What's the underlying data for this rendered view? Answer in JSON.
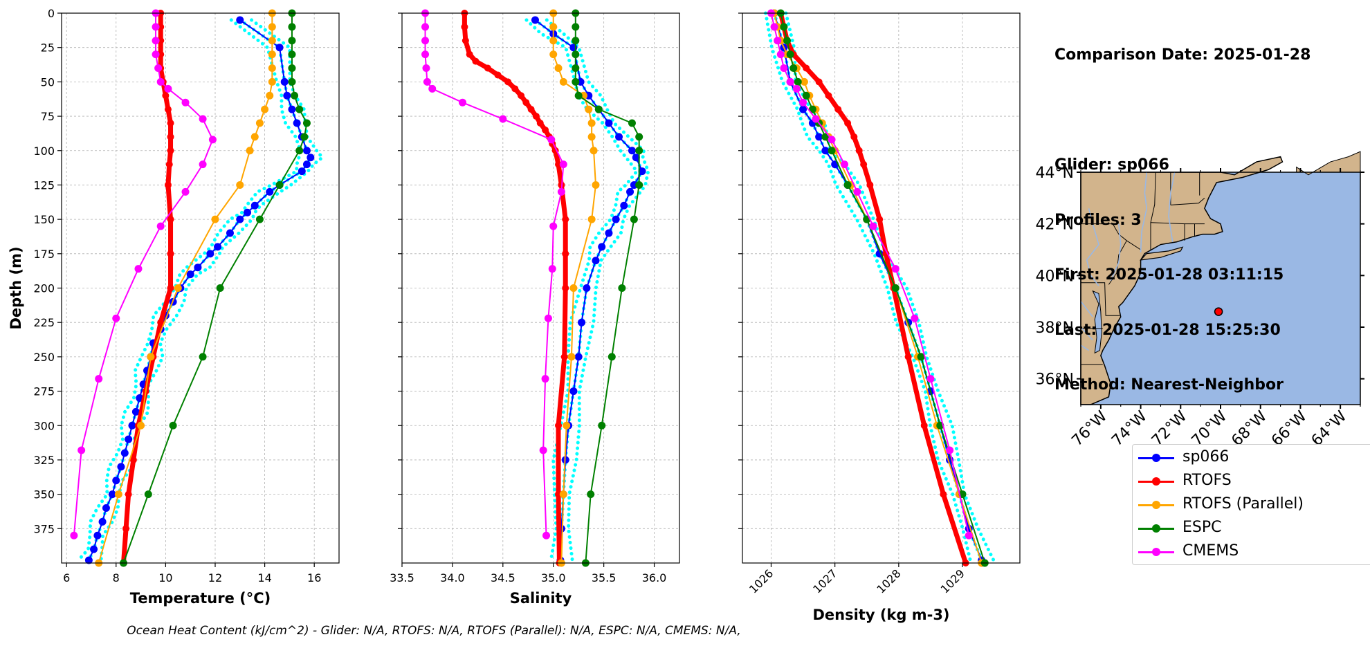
{
  "info": {
    "date_line": "Comparison Date: 2025-01-28",
    "glider_line": "Glider: sp066",
    "profiles_line": "Profiles: 3",
    "first_line": "First: 2025-01-28 03:11:15",
    "last_line": "Last: 2025-01-28 15:25:30",
    "method_line": "Method: Nearest-Neighbor"
  },
  "footer": "Ocean Heat Content (kJ/cm^2) - Glider: N/A,  RTOFS: N/A,  RTOFS (Parallel): N/A,  ESPC: N/A,  CMEMS: N/A,",
  "colors": {
    "sp066": "#0000ff",
    "RTOFS": "#ff0000",
    "RTOFS (Parallel)": "#ffa500",
    "ESPC": "#008000",
    "CMEMS": "#ff00ff",
    "glider_profiles": "#00ffff",
    "land": "#d2b48c",
    "ocean": "#9ab8e4"
  },
  "legend": [
    {
      "name": "sp066",
      "color": "#0000ff"
    },
    {
      "name": "RTOFS",
      "color": "#ff0000"
    },
    {
      "name": "RTOFS (Parallel)",
      "color": "#ffa500"
    },
    {
      "name": "ESPC",
      "color": "#008000"
    },
    {
      "name": "CMEMS",
      "color": "#ff00ff"
    }
  ],
  "map": {
    "xticks": [
      "76°W",
      "74°W",
      "72°W",
      "70°W",
      "68°W",
      "66°W",
      "64°W"
    ],
    "yticks": [
      "44°N",
      "42°N",
      "40°N",
      "38°N",
      "36°N"
    ],
    "glider_position": {
      "lon": -70.1,
      "lat": 38.6
    },
    "lon_range": [
      -77,
      -63
    ],
    "lat_range": [
      35,
      44
    ]
  },
  "chart_data": [
    {
      "type": "line",
      "xlabel": "Temperature (°C)",
      "ylabel": "Depth (m)",
      "xlim": [
        5.8,
        17.0
      ],
      "ylim": [
        400,
        0
      ],
      "xticks": [
        6,
        8,
        10,
        12,
        14,
        16
      ],
      "yticks": [
        0,
        25,
        50,
        75,
        100,
        125,
        150,
        175,
        200,
        225,
        250,
        275,
        300,
        325,
        350,
        375
      ],
      "grid": true,
      "series": [
        {
          "name": "sp066",
          "depth": [
            5,
            25,
            50,
            60,
            70,
            80,
            90,
            100,
            105,
            110,
            115,
            125,
            130,
            140,
            145,
            150,
            160,
            170,
            175,
            185,
            190,
            200,
            210,
            220,
            230,
            240,
            250,
            260,
            270,
            280,
            290,
            300,
            310,
            320,
            330,
            340,
            350,
            360,
            370,
            380,
            390,
            398
          ],
          "values": [
            13.0,
            14.6,
            14.8,
            14.9,
            15.1,
            15.3,
            15.5,
            15.7,
            15.85,
            15.7,
            15.5,
            14.6,
            14.2,
            13.6,
            13.3,
            13.0,
            12.6,
            12.1,
            11.8,
            11.3,
            11.0,
            10.6,
            10.3,
            10.0,
            9.8,
            9.5,
            9.4,
            9.25,
            9.1,
            8.95,
            8.8,
            8.65,
            8.5,
            8.35,
            8.2,
            8.0,
            7.85,
            7.6,
            7.45,
            7.25,
            7.1,
            6.9
          ]
        },
        {
          "name": "RTOFS",
          "depth": [
            0,
            10,
            20,
            30,
            40,
            50,
            60,
            70,
            80,
            90,
            100,
            110,
            125,
            150,
            175,
            200,
            225,
            250,
            275,
            300,
            325,
            350,
            375,
            400
          ],
          "values": [
            9.8,
            9.8,
            9.8,
            9.8,
            9.8,
            9.9,
            10.0,
            10.1,
            10.2,
            10.2,
            10.2,
            10.15,
            10.1,
            10.2,
            10.2,
            10.2,
            9.8,
            9.5,
            9.2,
            8.9,
            8.7,
            8.5,
            8.4,
            8.3
          ]
        },
        {
          "name": "RTOFS (Parallel)",
          "depth": [
            0,
            10,
            20,
            30,
            40,
            50,
            60,
            70,
            80,
            90,
            100,
            125,
            150,
            200,
            250,
            300,
            350,
            400
          ],
          "values": [
            14.3,
            14.3,
            14.3,
            14.3,
            14.3,
            14.3,
            14.2,
            14.0,
            13.8,
            13.6,
            13.4,
            13.0,
            12.0,
            10.5,
            9.4,
            9.0,
            8.1,
            7.3
          ]
        },
        {
          "name": "ESPC",
          "depth": [
            0,
            10,
            20,
            30,
            40,
            50,
            60,
            70,
            80,
            90,
            100,
            125,
            150,
            200,
            250,
            300,
            350,
            400
          ],
          "values": [
            15.1,
            15.1,
            15.1,
            15.1,
            15.1,
            15.1,
            15.2,
            15.4,
            15.7,
            15.6,
            15.4,
            14.6,
            13.8,
            12.2,
            11.5,
            10.3,
            9.3,
            8.3
          ]
        },
        {
          "name": "CMEMS",
          "depth": [
            0,
            10,
            20,
            30,
            40,
            50,
            55,
            65,
            77,
            92,
            110,
            130,
            155,
            186,
            222,
            266,
            318,
            380
          ],
          "values": [
            9.6,
            9.6,
            9.6,
            9.6,
            9.7,
            9.8,
            10.1,
            10.8,
            11.5,
            11.9,
            11.5,
            10.8,
            9.8,
            8.9,
            8.0,
            7.3,
            6.6,
            6.3
          ]
        }
      ]
    },
    {
      "type": "line",
      "xlabel": "Salinity",
      "xlim": [
        33.5,
        36.25
      ],
      "ylim": [
        400,
        0
      ],
      "xticks": [
        33.5,
        34.0,
        34.5,
        35.0,
        35.5,
        36.0
      ],
      "grid": true,
      "series": [
        {
          "name": "sp066",
          "depth": [
            5,
            15,
            25,
            50,
            60,
            70,
            80,
            90,
            100,
            105,
            115,
            125,
            130,
            140,
            150,
            160,
            170,
            180,
            200,
            225,
            250,
            275,
            300,
            325,
            350,
            375,
            398
          ],
          "values": [
            34.82,
            35.0,
            35.2,
            35.27,
            35.35,
            35.45,
            35.55,
            35.65,
            35.78,
            35.82,
            35.88,
            35.8,
            35.76,
            35.7,
            35.62,
            35.55,
            35.48,
            35.42,
            35.33,
            35.28,
            35.25,
            35.2,
            35.15,
            35.12,
            35.1,
            35.08,
            35.07
          ]
        },
        {
          "name": "RTOFS",
          "depth": [
            0,
            10,
            20,
            30,
            35,
            40,
            45,
            50,
            55,
            60,
            65,
            70,
            75,
            80,
            85,
            90,
            95,
            100,
            110,
            125,
            150,
            175,
            200,
            250,
            300,
            350,
            400
          ],
          "values": [
            34.12,
            34.12,
            34.13,
            34.17,
            34.23,
            34.35,
            34.45,
            34.55,
            34.62,
            34.68,
            34.73,
            34.78,
            34.83,
            34.87,
            34.92,
            34.96,
            34.99,
            35.02,
            35.05,
            35.08,
            35.12,
            35.12,
            35.12,
            35.11,
            35.05,
            35.05,
            35.06
          ]
        },
        {
          "name": "RTOFS (Parallel)",
          "depth": [
            0,
            10,
            20,
            30,
            40,
            50,
            60,
            70,
            80,
            90,
            100,
            125,
            150,
            200,
            250,
            300,
            350,
            400
          ],
          "values": [
            35.0,
            35.0,
            35.0,
            35.0,
            35.05,
            35.1,
            35.3,
            35.35,
            35.38,
            35.38,
            35.4,
            35.42,
            35.38,
            35.2,
            35.18,
            35.13,
            35.1,
            35.08
          ]
        },
        {
          "name": "ESPC",
          "depth": [
            0,
            10,
            20,
            30,
            40,
            50,
            60,
            70,
            80,
            90,
            100,
            125,
            150,
            200,
            250,
            300,
            350,
            400
          ],
          "values": [
            35.22,
            35.22,
            35.22,
            35.22,
            35.22,
            35.22,
            35.25,
            35.45,
            35.78,
            35.85,
            35.85,
            35.85,
            35.8,
            35.68,
            35.58,
            35.48,
            35.37,
            35.32
          ]
        },
        {
          "name": "CMEMS",
          "depth": [
            0,
            10,
            20,
            30,
            40,
            50,
            55,
            65,
            77,
            92,
            110,
            130,
            155,
            186,
            222,
            266,
            318,
            380
          ],
          "values": [
            33.73,
            33.73,
            33.73,
            33.73,
            33.74,
            33.75,
            33.8,
            34.1,
            34.5,
            34.98,
            35.1,
            35.08,
            35.0,
            34.99,
            34.95,
            34.92,
            34.9,
            34.93
          ]
        }
      ]
    },
    {
      "type": "line",
      "xlabel": "Density (kg m-3)",
      "xlim": [
        1025.55,
        1029.9
      ],
      "ylim": [
        400,
        0
      ],
      "xticks": [
        1026,
        1027,
        1028,
        1029
      ],
      "grid": true,
      "series": [
        {
          "name": "sp066",
          "depth": [
            0,
            25,
            50,
            70,
            80,
            90,
            100,
            110,
            125,
            150,
            175,
            200,
            225,
            250,
            275,
            300,
            325,
            350,
            375,
            398
          ],
          "values": [
            1026.05,
            1026.2,
            1026.3,
            1026.5,
            1026.65,
            1026.75,
            1026.85,
            1027.0,
            1027.2,
            1027.5,
            1027.7,
            1027.95,
            1028.15,
            1028.35,
            1028.5,
            1028.65,
            1028.8,
            1028.95,
            1029.1,
            1029.3
          ]
        },
        {
          "name": "RTOFS",
          "depth": [
            0,
            10,
            20,
            30,
            40,
            50,
            60,
            70,
            80,
            90,
            100,
            110,
            125,
            150,
            175,
            200,
            250,
            300,
            350,
            400
          ],
          "values": [
            1026.15,
            1026.2,
            1026.25,
            1026.35,
            1026.55,
            1026.75,
            1026.9,
            1027.05,
            1027.2,
            1027.3,
            1027.38,
            1027.45,
            1027.55,
            1027.7,
            1027.8,
            1027.92,
            1028.15,
            1028.4,
            1028.7,
            1029.05
          ]
        },
        {
          "name": "RTOFS (Parallel)",
          "depth": [
            0,
            10,
            20,
            30,
            40,
            50,
            60,
            70,
            80,
            90,
            100,
            125,
            150,
            200,
            250,
            300,
            350,
            400
          ],
          "values": [
            1026.05,
            1026.1,
            1026.15,
            1026.25,
            1026.4,
            1026.52,
            1026.6,
            1026.7,
            1026.8,
            1026.9,
            1027.0,
            1027.25,
            1027.5,
            1027.95,
            1028.3,
            1028.6,
            1028.95,
            1029.3
          ]
        },
        {
          "name": "ESPC",
          "depth": [
            0,
            10,
            20,
            30,
            40,
            50,
            60,
            70,
            80,
            90,
            100,
            125,
            150,
            200,
            250,
            300,
            350,
            400
          ],
          "values": [
            1026.15,
            1026.2,
            1026.25,
            1026.3,
            1026.35,
            1026.42,
            1026.55,
            1026.65,
            1026.75,
            1026.85,
            1026.95,
            1027.2,
            1027.5,
            1027.95,
            1028.35,
            1028.65,
            1029.0,
            1029.35
          ]
        },
        {
          "name": "CMEMS",
          "depth": [
            0,
            10,
            20,
            30,
            40,
            50,
            55,
            65,
            77,
            92,
            110,
            130,
            155,
            186,
            222,
            266,
            318,
            380
          ],
          "values": [
            1026.0,
            1026.05,
            1026.1,
            1026.15,
            1026.2,
            1026.3,
            1026.4,
            1026.5,
            1026.7,
            1026.95,
            1027.15,
            1027.35,
            1027.6,
            1027.95,
            1028.25,
            1028.5,
            1028.8,
            1029.1
          ]
        }
      ]
    }
  ]
}
